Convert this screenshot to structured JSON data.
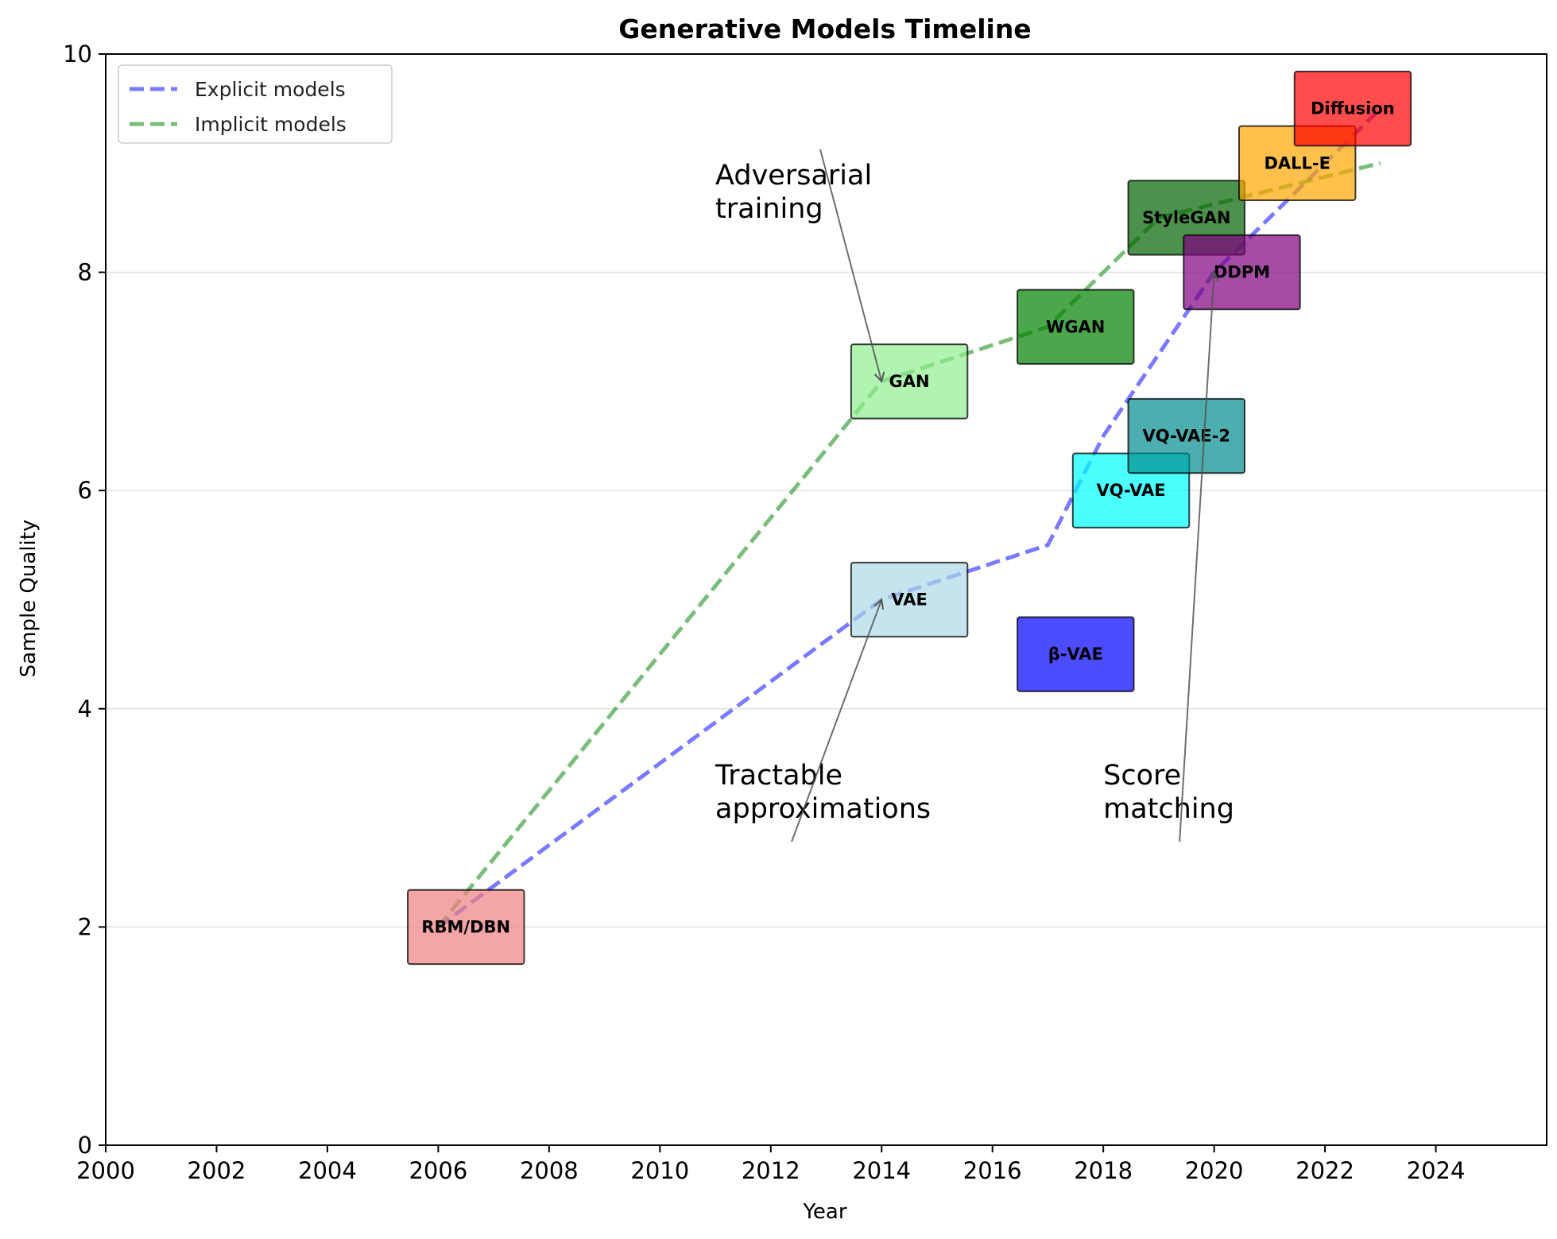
{
  "chart_data": {
    "type": "line",
    "title": "Generative Models Timeline",
    "xlabel": "Year",
    "ylabel": "Sample Quality",
    "xlim": [
      2000,
      2026
    ],
    "ylim": [
      0,
      10
    ],
    "xticks": [
      2000,
      2002,
      2004,
      2006,
      2008,
      2010,
      2012,
      2014,
      2016,
      2018,
      2020,
      2022,
      2024
    ],
    "yticks": [
      0,
      2,
      4,
      6,
      8,
      10
    ],
    "grid": "horizontal",
    "legend_position": "top-left",
    "series": [
      {
        "name": "Explicit models",
        "color": "#0000ff",
        "style": "dashed",
        "points": [
          [
            2006,
            2.0
          ],
          [
            2014,
            5.0
          ],
          [
            2017,
            5.5
          ],
          [
            2018,
            6.5
          ],
          [
            2020,
            8.0
          ],
          [
            2023,
            9.5
          ]
        ]
      },
      {
        "name": "Implicit models",
        "color": "#008000",
        "style": "dashed",
        "points": [
          [
            2006,
            2.0
          ],
          [
            2014,
            7.0
          ],
          [
            2017,
            7.5
          ],
          [
            2019,
            8.5
          ],
          [
            2023,
            9.0
          ]
        ]
      }
    ],
    "models": [
      {
        "name": "RBM/DBN",
        "year": 2006.5,
        "quality": 2.0,
        "color": "#f08080"
      },
      {
        "name": "VAE",
        "year": 2014.5,
        "quality": 5.0,
        "color": "#add8e6"
      },
      {
        "name": "GAN",
        "year": 2014.5,
        "quality": 7.0,
        "color": "#90ee90"
      },
      {
        "name": "β-VAE",
        "year": 2017.5,
        "quality": 4.5,
        "color": "#0000ff"
      },
      {
        "name": "WGAN",
        "year": 2017.5,
        "quality": 7.5,
        "color": "#008000"
      },
      {
        "name": "VQ-VAE",
        "year": 2018.5,
        "quality": 6.0,
        "color": "#00ffff"
      },
      {
        "name": "VQ-VAE-2",
        "year": 2019.5,
        "quality": 6.5,
        "color": "#008b8b"
      },
      {
        "name": "StyleGAN",
        "year": 2019.5,
        "quality": 8.5,
        "color": "#006400"
      },
      {
        "name": "DDPM",
        "year": 2020.5,
        "quality": 8.0,
        "color": "#800080"
      },
      {
        "name": "DALL-E",
        "year": 2021.5,
        "quality": 9.0,
        "color": "#ffa500"
      },
      {
        "name": "Diffusion",
        "year": 2022.5,
        "quality": 9.5,
        "color": "#ff0000"
      }
    ],
    "annotations": [
      {
        "lines": [
          "Adversarial",
          "training"
        ],
        "text_at": [
          2011,
          8.5
        ],
        "points_to": [
          2014,
          7.0
        ]
      },
      {
        "lines": [
          "Tractable",
          "approximations"
        ],
        "text_at": [
          2011,
          3.0
        ],
        "points_to": [
          2014,
          5.0
        ]
      },
      {
        "lines": [
          "Score",
          "matching"
        ],
        "text_at": [
          2018,
          3.0
        ],
        "points_to": [
          2020,
          8.0
        ]
      }
    ]
  }
}
